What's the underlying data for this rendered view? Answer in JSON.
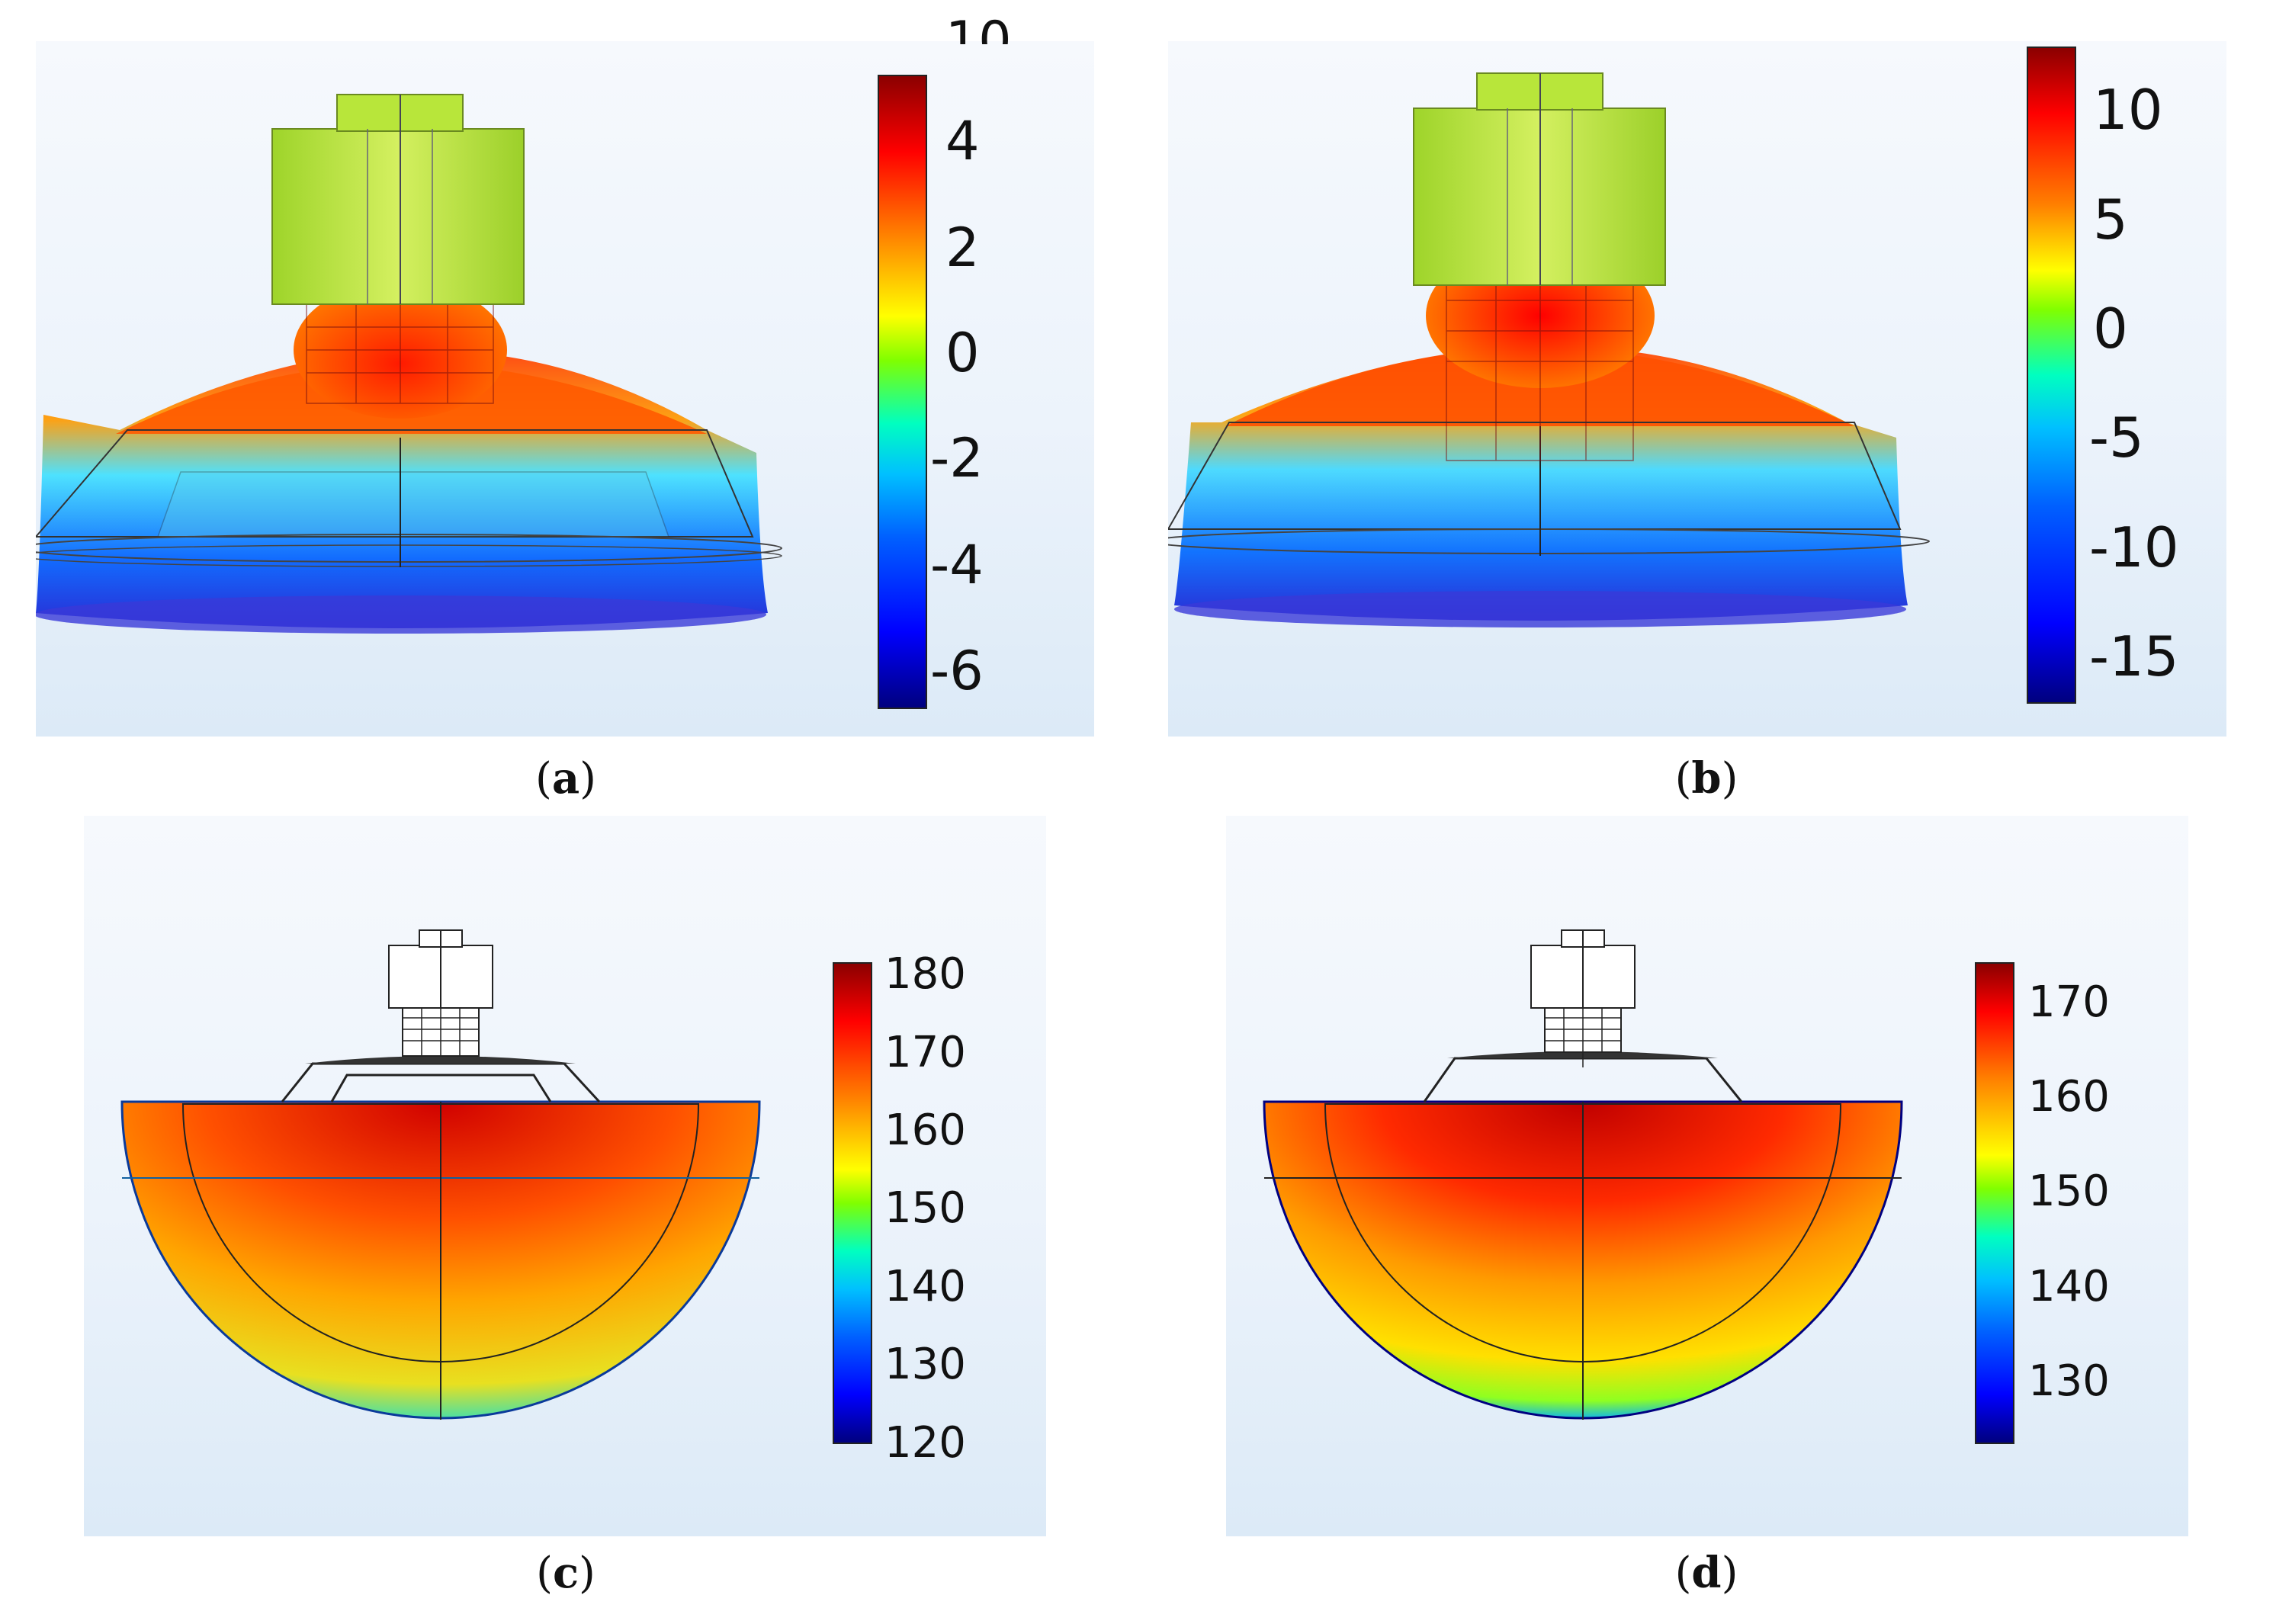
{
  "figure": {
    "panels": [
      {
        "id": "a",
        "caption_label": "a",
        "colorbar_ticks": [
          "4",
          "2",
          "0",
          "-2",
          "-4",
          "-6"
        ],
        "colorbar_partial_top_label": "10"
      },
      {
        "id": "b",
        "caption_label": "b",
        "colorbar_ticks": [
          "10",
          "5",
          "0",
          "-5",
          "-10",
          "-15"
        ]
      },
      {
        "id": "c",
        "caption_label": "c",
        "colorbar_ticks": [
          "180",
          "170",
          "160",
          "150",
          "140",
          "130",
          "120"
        ]
      },
      {
        "id": "d",
        "caption_label": "d",
        "colorbar_ticks": [
          "170",
          "160",
          "150",
          "140",
          "130"
        ]
      }
    ],
    "colors": {
      "colormap": [
        "#00007f",
        "#0000ff",
        "#0080ff",
        "#00ffff",
        "#00ff80",
        "#80ff00",
        "#ffff00",
        "#ff8000",
        "#ff0000",
        "#7f0000"
      ],
      "housing": "#b8e63a",
      "background_top": "#f6f9fd",
      "background_bottom": "#dceaf7"
    }
  }
}
